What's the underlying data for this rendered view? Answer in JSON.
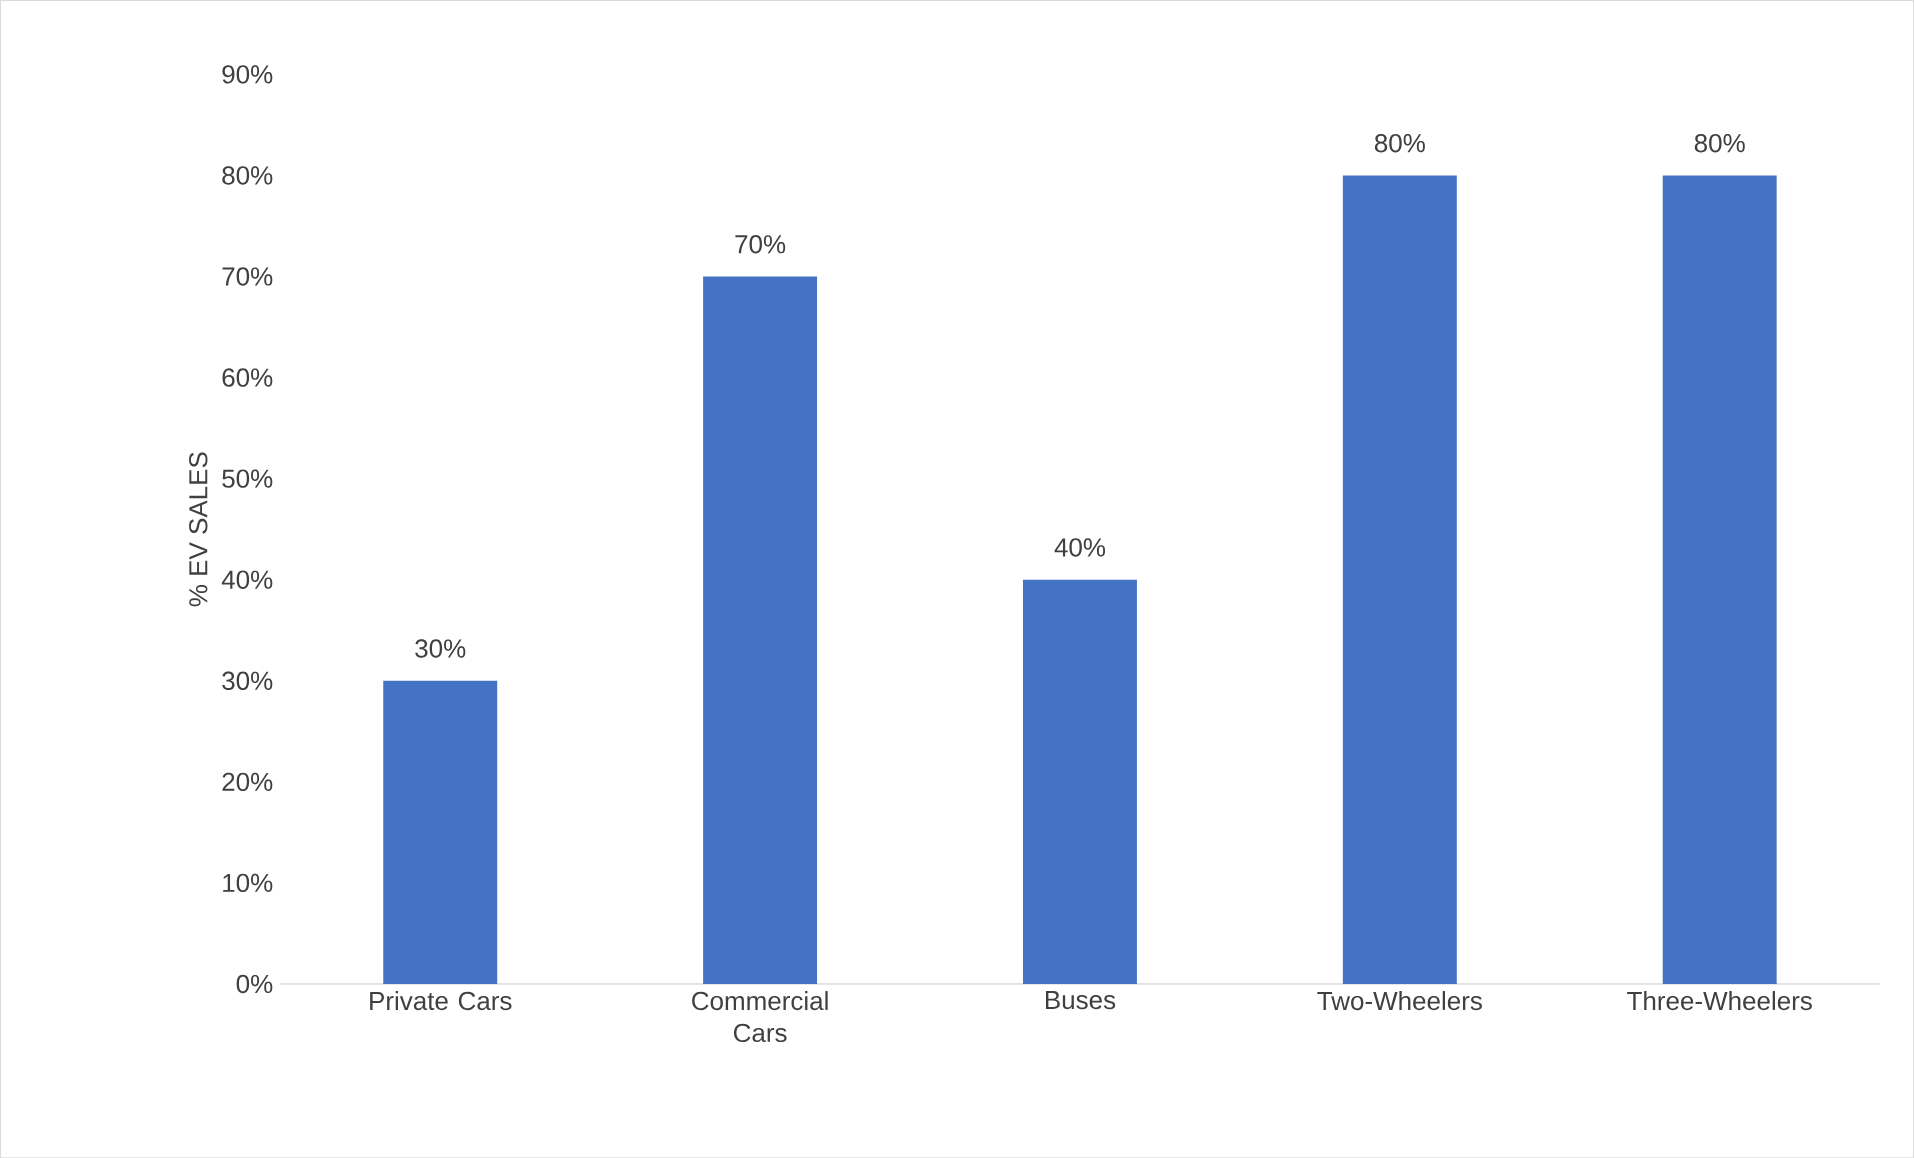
{
  "chart_data": {
    "type": "bar",
    "ylabel": "% EV SALES",
    "categories": [
      "Private Cars",
      "Commercial Cars",
      "Buses",
      "Two-Wheelers",
      "Three-Wheelers"
    ],
    "values": [
      30,
      70,
      40,
      80,
      80
    ],
    "value_labels": [
      "30%",
      "70%",
      "40%",
      "80%",
      "80%"
    ],
    "color": "#4472c4",
    "ylim": [
      0,
      90
    ],
    "yticks": [
      {
        "value": 0,
        "label": "0%"
      },
      {
        "value": 10,
        "label": "10%"
      },
      {
        "value": 20,
        "label": "20%"
      },
      {
        "value": 30,
        "label": "30%"
      },
      {
        "value": 40,
        "label": "40%"
      },
      {
        "value": 50,
        "label": "50%"
      },
      {
        "value": 60,
        "label": "60%"
      },
      {
        "value": 70,
        "label": "70%"
      },
      {
        "value": 80,
        "label": "80%"
      },
      {
        "value": 90,
        "label": "90%"
      }
    ],
    "grid": false
  }
}
